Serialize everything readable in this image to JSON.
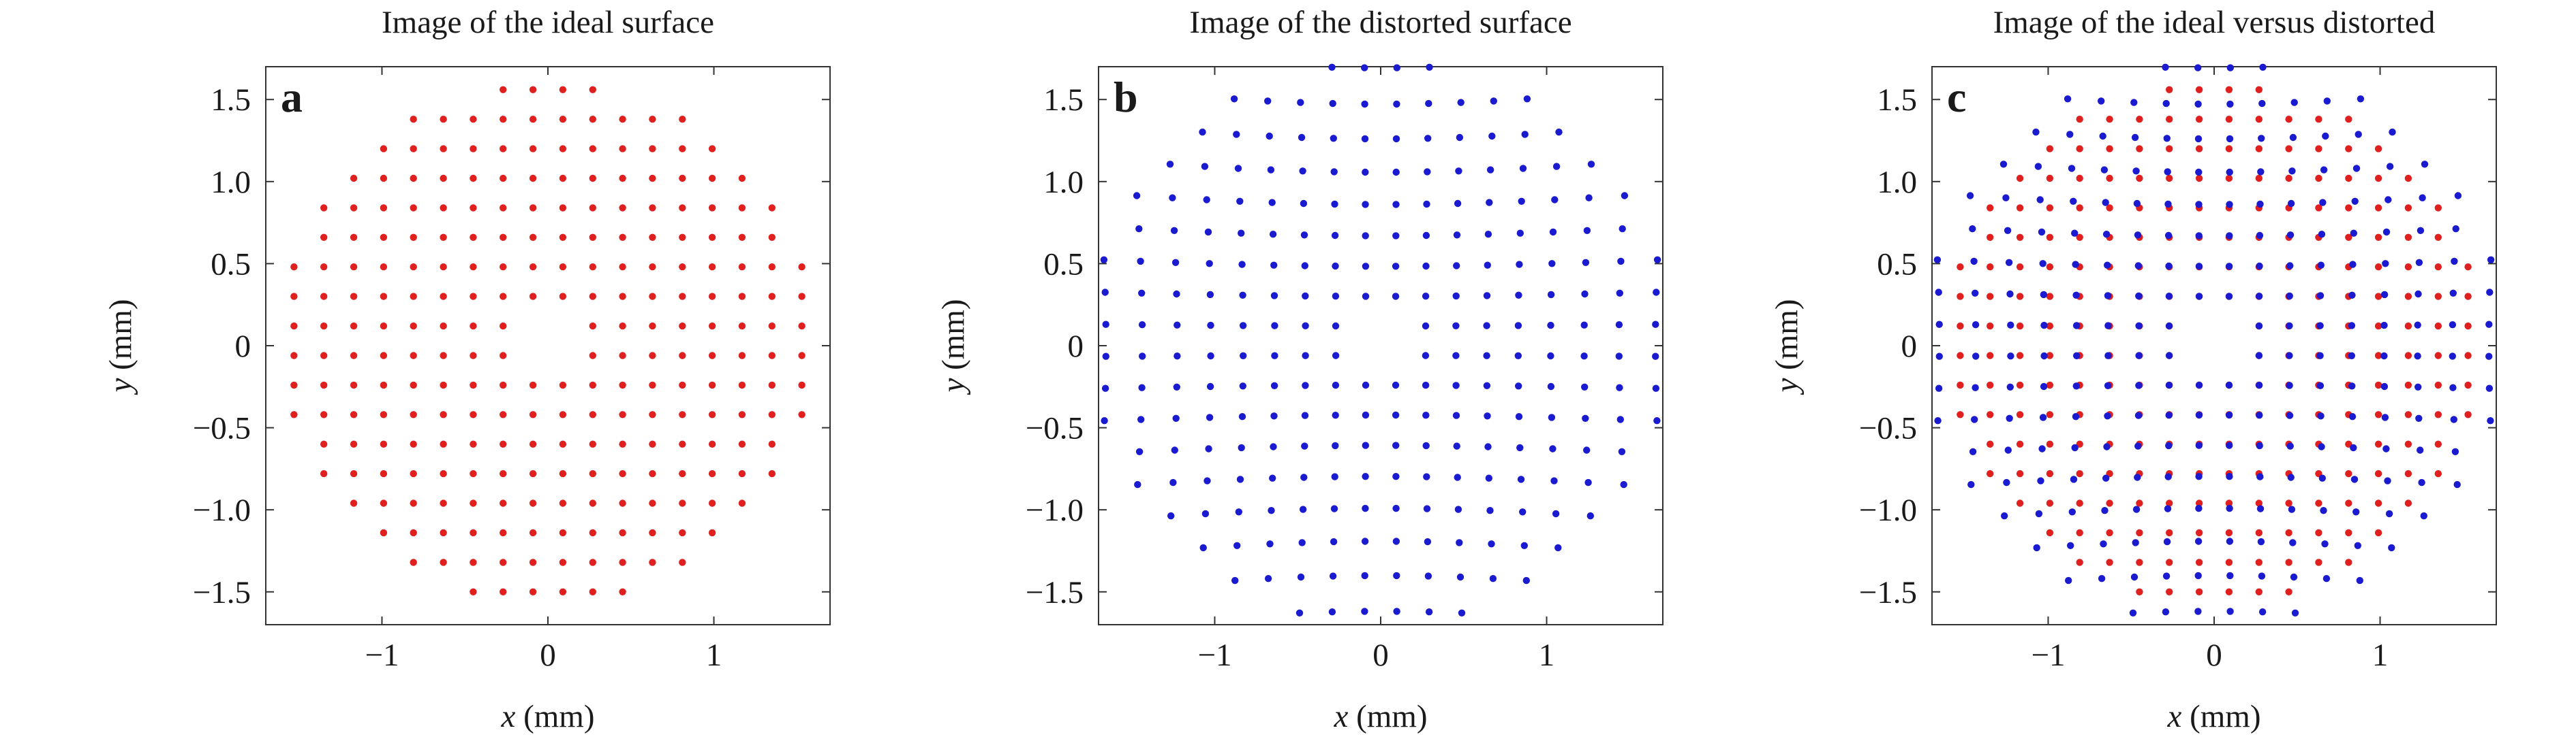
{
  "chart_data": [
    {
      "type": "scatter",
      "title": "Image of the ideal surface",
      "panel_letter": "a",
      "xlabel_var": "x",
      "xlabel_unit": "(mm)",
      "ylabel_var": "y",
      "ylabel_unit": "(mm)",
      "xlim": [
        -1.7,
        1.7
      ],
      "ylim": [
        -1.7,
        1.7
      ],
      "xticks": [
        {
          "v": -1,
          "label": "−1"
        },
        {
          "v": 0,
          "label": "0"
        },
        {
          "v": 1,
          "label": "1"
        }
      ],
      "yticks": [
        {
          "v": 1.5,
          "label": "1.5"
        },
        {
          "v": 1.0,
          "label": "1.0"
        },
        {
          "v": 0.5,
          "label": "0.5"
        },
        {
          "v": 0,
          "label": "0"
        },
        {
          "v": -0.5,
          "label": "−0.5"
        },
        {
          "v": -1.0,
          "label": "−1.0"
        },
        {
          "v": -1.5,
          "label": "−1.5"
        }
      ],
      "grid": false,
      "series": [
        {
          "color": "#e0201f",
          "grid_pitch": 0.18,
          "x_start": -1.53,
          "y_start": -1.5,
          "outer_radius": 1.61,
          "inner_radius": 0.22,
          "distortion": 0
        }
      ]
    },
    {
      "type": "scatter",
      "title": "Image of the distorted surface",
      "panel_letter": "b",
      "xlabel_var": "x",
      "xlabel_unit": "(mm)",
      "ylabel_var": "y",
      "ylabel_unit": "(mm)",
      "xlim": [
        -1.7,
        1.7
      ],
      "ylim": [
        -1.7,
        1.7
      ],
      "xticks": [
        {
          "v": -1,
          "label": "−1"
        },
        {
          "v": 0,
          "label": "0"
        },
        {
          "v": 1,
          "label": "1"
        }
      ],
      "yticks": [
        {
          "v": 1.5,
          "label": "1.5"
        },
        {
          "v": 1.0,
          "label": "1.0"
        },
        {
          "v": 0.5,
          "label": "0.5"
        },
        {
          "v": 0,
          "label": "0"
        },
        {
          "v": -0.5,
          "label": "−0.5"
        },
        {
          "v": -1.0,
          "label": "−1.0"
        },
        {
          "v": -1.5,
          "label": "−1.5"
        }
      ],
      "grid": false,
      "series": [
        {
          "color": "#1a1ad0",
          "grid_pitch": 0.18,
          "x_start": -1.53,
          "y_start": -1.5,
          "outer_radius": 1.61,
          "inner_radius": 0.22,
          "distortion": 0.035
        }
      ]
    },
    {
      "type": "scatter",
      "title": "Image of the ideal versus distorted",
      "panel_letter": "c",
      "xlabel_var": "x",
      "xlabel_unit": "(mm)",
      "ylabel_var": "y",
      "ylabel_unit": "(mm)",
      "xlim": [
        -1.7,
        1.7
      ],
      "ylim": [
        -1.7,
        1.7
      ],
      "xticks": [
        {
          "v": -1,
          "label": "−1"
        },
        {
          "v": 0,
          "label": "0"
        },
        {
          "v": 1,
          "label": "1"
        }
      ],
      "yticks": [
        {
          "v": 1.5,
          "label": "1.5"
        },
        {
          "v": 1.0,
          "label": "1.0"
        },
        {
          "v": 0.5,
          "label": "0.5"
        },
        {
          "v": 0,
          "label": "0"
        },
        {
          "v": -0.5,
          "label": "−0.5"
        },
        {
          "v": -1.0,
          "label": "−1.0"
        },
        {
          "v": -1.5,
          "label": "−1.5"
        }
      ],
      "grid": false,
      "series": [
        {
          "color": "#e0201f",
          "grid_pitch": 0.18,
          "x_start": -1.53,
          "y_start": -1.5,
          "outer_radius": 1.61,
          "inner_radius": 0.22,
          "distortion": 0
        },
        {
          "color": "#1a1ad0",
          "grid_pitch": 0.18,
          "x_start": -1.53,
          "y_start": -1.5,
          "outer_radius": 1.61,
          "inner_radius": 0.22,
          "distortion": 0.035
        }
      ]
    }
  ]
}
